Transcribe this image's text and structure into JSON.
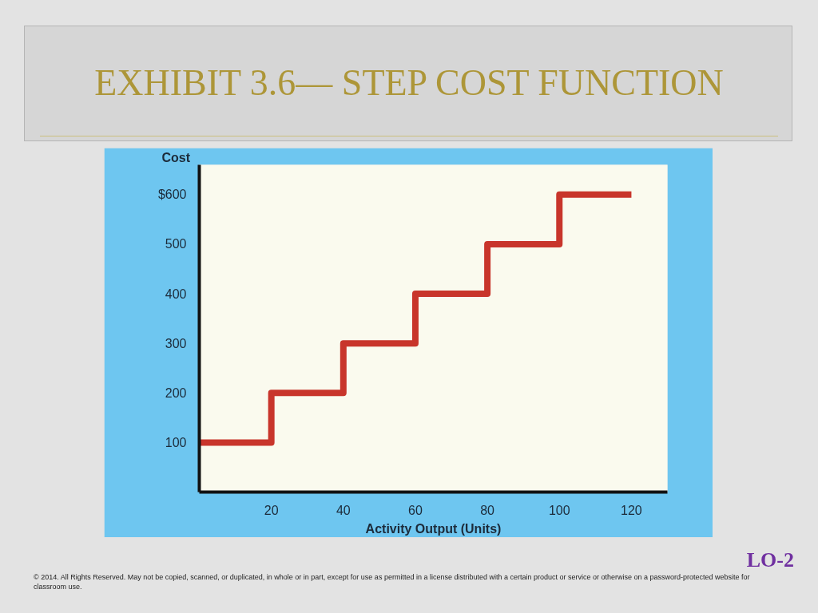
{
  "chart_data": {
    "type": "step",
    "title": "EXHIBIT 3.6— STEP COST FUNCTION",
    "xlabel": "Activity Output (Units)",
    "ylabel": "Cost",
    "x": [
      0,
      20,
      40,
      60,
      80,
      100,
      120
    ],
    "series": [
      {
        "color": "#c8352b",
        "values": [
          100,
          200,
          300,
          400,
          500,
          600,
          600
        ]
      }
    ],
    "xlim": [
      0,
      130
    ],
    "ylim": [
      0,
      660
    ],
    "xticks": [
      20,
      40,
      60,
      80,
      100,
      120
    ],
    "yticks": [
      100,
      200,
      300,
      400,
      500,
      {
        "value": 600,
        "label": "$600"
      }
    ],
    "grid": false,
    "marker": "none",
    "line_style": "solid",
    "annotations": [
      "LO-2",
      "© 2014. All Rights Reserved. May not be copied, scanned, or duplicated, in whole or in part, except for use as permitted in a license distributed with a certain product or service or otherwise on a password-protected website for classroom use."
    ]
  }
}
